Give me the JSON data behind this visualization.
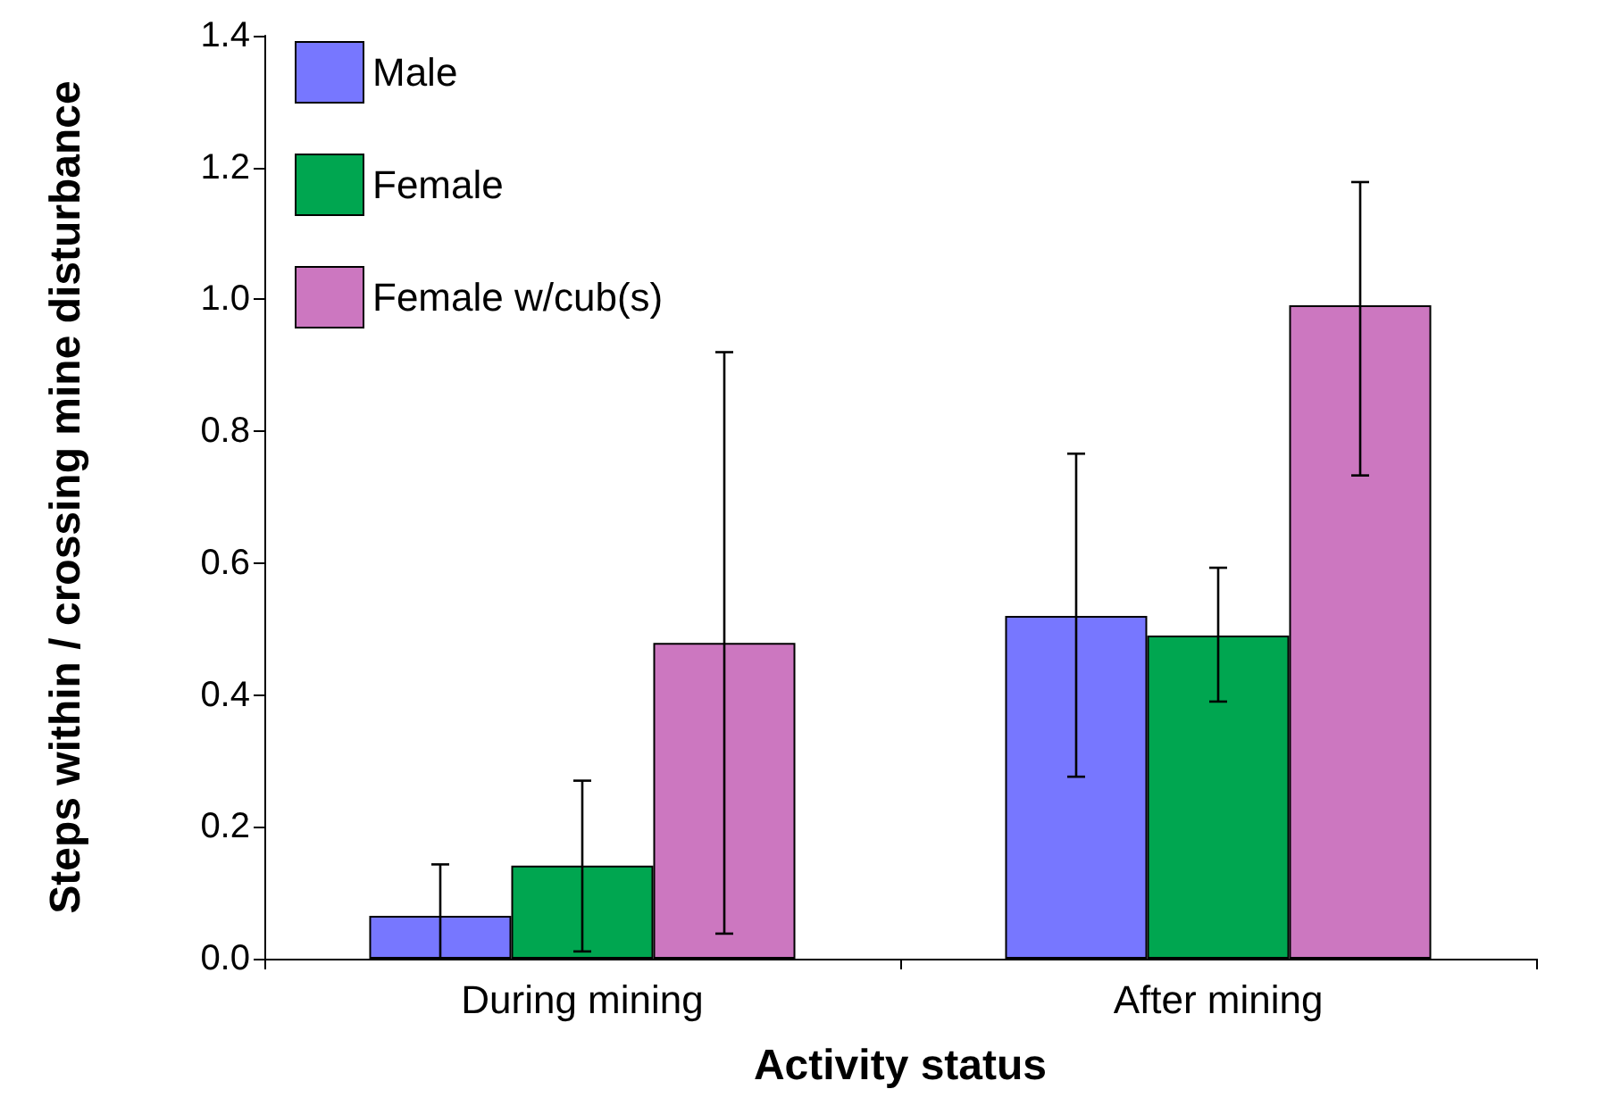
{
  "chart_data": {
    "type": "bar",
    "xlabel": "Activity status",
    "ylabel": "Steps within / crossing mine disturbance",
    "categories": [
      "During mining",
      "After mining"
    ],
    "series": [
      {
        "name": "Male",
        "color": "#7777ff",
        "values": [
          0.065,
          0.52
        ],
        "errors": [
          [
            0,
            0.143
          ],
          [
            0.276,
            0.766
          ]
        ]
      },
      {
        "name": "Female",
        "color": "#00a650",
        "values": [
          0.141,
          0.49
        ],
        "errors": [
          [
            0.011,
            0.27
          ],
          [
            0.39,
            0.593
          ]
        ]
      },
      {
        "name": "Female w/cub(s)",
        "color": "#cc77c0",
        "values": [
          0.479,
          0.991
        ],
        "errors": [
          [
            0.038,
            0.92
          ],
          [
            0.733,
            1.178
          ]
        ]
      }
    ],
    "ylim": [
      0,
      1.4
    ],
    "yticks": [
      {
        "value": 0,
        "label": "0.0"
      },
      {
        "value": 0.2,
        "label": "0.2"
      },
      {
        "value": 0.4,
        "label": "0.4"
      },
      {
        "value": 0.6,
        "label": "0.6"
      },
      {
        "value": 0.8,
        "label": "0.8"
      },
      {
        "value": 1.0,
        "label": "1.0"
      },
      {
        "value": 1.2,
        "label": "1.2"
      },
      {
        "value": 1.4,
        "label": "1.4"
      }
    ],
    "grid": false,
    "legend": "top left"
  }
}
